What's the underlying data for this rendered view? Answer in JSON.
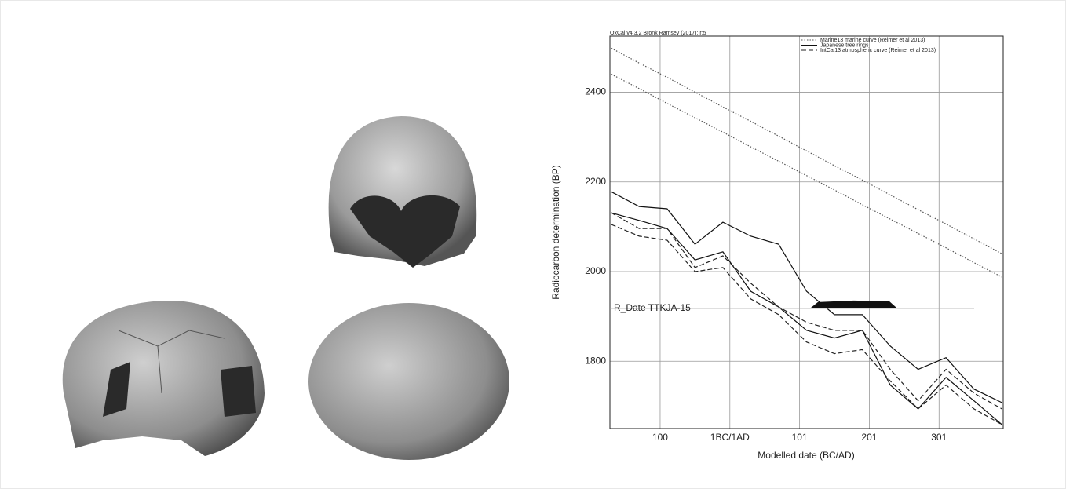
{
  "chart_data": {
    "type": "band-line",
    "header": "OxCal v4.3.2 Bronk Ramsey (2017); r:5",
    "xlabel": "Modelled date (BC/AD)",
    "ylabel": "Radiocarbon determination (BP)",
    "xlim": [
      -172,
      392
    ],
    "ylim": [
      1650,
      2525
    ],
    "xticks": [
      {
        "value": -100,
        "label": "100"
      },
      {
        "value": 0,
        "label": "1BC/1AD"
      },
      {
        "value": 100,
        "label": "101"
      },
      {
        "value": 200,
        "label": "201"
      },
      {
        "value": 300,
        "label": "301"
      }
    ],
    "yticks": [
      1800,
      2000,
      2200,
      2400
    ],
    "grid": true,
    "legend": "top-right",
    "x": [
      -170,
      -130,
      -90,
      -50,
      -10,
      30,
      70,
      110,
      150,
      190,
      230,
      270,
      310,
      350,
      390
    ],
    "series": [
      {
        "name": "Marine13 marine curve (Reimer et al 2013)",
        "color": "#555555",
        "dash": "dotted",
        "upper": [
          2498,
          2465,
          2433,
          2400,
          2367,
          2335,
          2302,
          2269,
          2236,
          2204,
          2171,
          2138,
          2106,
          2073,
          2040
        ],
        "lower": [
          2440,
          2408,
          2375,
          2343,
          2311,
          2278,
          2246,
          2214,
          2182,
          2149,
          2117,
          2085,
          2053,
          2020,
          1988
        ]
      },
      {
        "name": "Japanese tree rings",
        "color": "#111111",
        "dash": "solid",
        "upper": [
          2178,
          2145,
          2140,
          2061,
          2110,
          2079,
          2061,
          1956,
          1904,
          1904,
          1834,
          1782,
          1808,
          1738,
          1708
        ],
        "lower": [
          2131,
          2114,
          2096,
          2026,
          2044,
          1956,
          1921,
          1869,
          1852,
          1869,
          1747,
          1694,
          1764,
          1712,
          1659
        ]
      },
      {
        "name": "IntCal13 atmospheric curve (Reimer et al 2013)",
        "color": "#222222",
        "dash": "dashed",
        "upper": [
          2131,
          2096,
          2096,
          2009,
          2035,
          1974,
          1921,
          1887,
          1869,
          1869,
          1782,
          1712,
          1782,
          1729,
          1694
        ],
        "lower": [
          2105,
          2079,
          2070,
          2000,
          2009,
          1939,
          1904,
          1843,
          1817,
          1826,
          1756,
          1694,
          1747,
          1694,
          1659
        ]
      }
    ],
    "annotation": {
      "text": "R_Date TTKJA-15",
      "y": 1918,
      "range": [
        115,
        240
      ]
    }
  }
}
